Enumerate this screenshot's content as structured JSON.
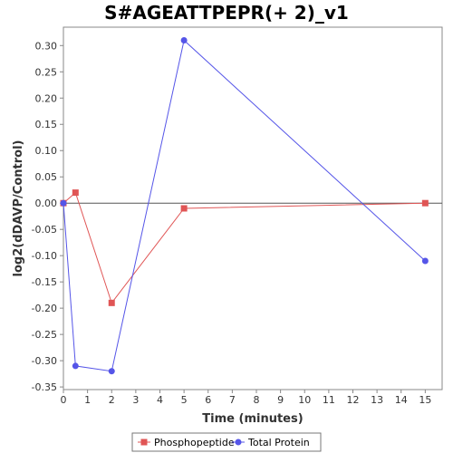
{
  "chart_data": {
    "type": "line",
    "title": "S#AGEATTPEPR(+ 2)_v1",
    "xlabel": "Time (minutes)",
    "ylabel": "log2(dDAVP/Control)",
    "xlim": [
      0,
      15.7
    ],
    "ylim": [
      -0.355,
      0.335
    ],
    "xticks": [
      0,
      1,
      2,
      3,
      4,
      5,
      6,
      7,
      8,
      9,
      10,
      11,
      12,
      13,
      14,
      15
    ],
    "yticks": [
      -0.35,
      -0.3,
      -0.25,
      -0.2,
      -0.15,
      -0.1,
      -0.05,
      0.0,
      0.05,
      0.1,
      0.15,
      0.2,
      0.25,
      0.3
    ],
    "zero_line": true,
    "grid": false,
    "legend_position": "bottom",
    "series": [
      {
        "name": "Phosphopeptide",
        "color": "#e05555",
        "marker": "square",
        "x": [
          0,
          0.5,
          2,
          5,
          15
        ],
        "y": [
          0.0,
          0.02,
          -0.19,
          -0.01,
          0.0
        ]
      },
      {
        "name": "Total Protein",
        "color": "#5555e8",
        "marker": "circle",
        "x": [
          0,
          0.5,
          2,
          5,
          15
        ],
        "y": [
          0.0,
          -0.31,
          -0.32,
          0.31,
          -0.11
        ]
      }
    ]
  }
}
